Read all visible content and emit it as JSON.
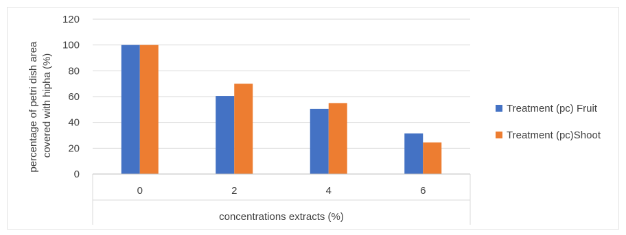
{
  "chart_data": {
    "type": "bar",
    "categories": [
      "0",
      "2",
      "4",
      "6"
    ],
    "series": [
      {
        "name": "Treatment (pc) Fruit",
        "values": [
          100,
          60.5,
          50.5,
          31.5
        ],
        "color": "#4472C4"
      },
      {
        "name": "Treatment (pc)Shoot",
        "values": [
          100,
          70,
          55,
          24.5
        ],
        "color": "#ED7D31"
      }
    ],
    "yticks": [
      0,
      20,
      40,
      60,
      80,
      100,
      120
    ],
    "ylim": [
      0,
      120
    ],
    "ylabel_lines": [
      "percentage of petri dish area",
      "covered with hipha (%)"
    ],
    "xlabel": "concentrations extracts (%)",
    "grid": true,
    "legend_position": "right"
  }
}
